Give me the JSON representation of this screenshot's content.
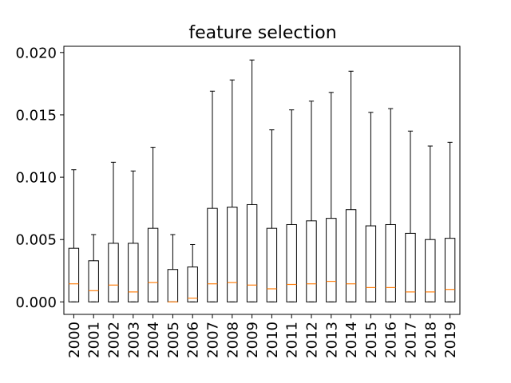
{
  "chart_data": {
    "type": "box",
    "title": "feature selection",
    "xlabel": "",
    "ylabel": "",
    "ylim": [
      -0.001,
      0.0205
    ],
    "yticks": [
      "0.000",
      "0.005",
      "0.010",
      "0.015",
      "0.020"
    ],
    "ytick_values": [
      0,
      0.005,
      0.01,
      0.015,
      0.02
    ],
    "grid": false,
    "colors": {
      "box": "#000000",
      "median": "#ff7f0e",
      "axes": "#000000"
    },
    "categories": [
      "2000",
      "2001",
      "2002",
      "2003",
      "2004",
      "2005",
      "2006",
      "2007",
      "2008",
      "2009",
      "2010",
      "2011",
      "2012",
      "2013",
      "2014",
      "2015",
      "2016",
      "2017",
      "2018",
      "2019"
    ],
    "boxes": [
      {
        "min": 0,
        "q1": 0,
        "median": 0.00145,
        "q3": 0.0043,
        "max": 0.0106
      },
      {
        "min": 0,
        "q1": 0,
        "median": 0.0009,
        "q3": 0.0033,
        "max": 0.0054
      },
      {
        "min": 0,
        "q1": 0,
        "median": 0.00135,
        "q3": 0.0047,
        "max": 0.0112
      },
      {
        "min": 0,
        "q1": 0,
        "median": 0.0008,
        "q3": 0.0047,
        "max": 0.0105
      },
      {
        "min": 0,
        "q1": 0,
        "median": 0.00155,
        "q3": 0.0059,
        "max": 0.0124
      },
      {
        "min": 0,
        "q1": 0,
        "median": 0.0,
        "q3": 0.0026,
        "max": 0.0054
      },
      {
        "min": 0,
        "q1": 0,
        "median": 0.0003,
        "q3": 0.0028,
        "max": 0.0046
      },
      {
        "min": 0,
        "q1": 0,
        "median": 0.00145,
        "q3": 0.0075,
        "max": 0.0169
      },
      {
        "min": 0,
        "q1": 0,
        "median": 0.00155,
        "q3": 0.0076,
        "max": 0.0178
      },
      {
        "min": 0,
        "q1": 0,
        "median": 0.00135,
        "q3": 0.0078,
        "max": 0.0194
      },
      {
        "min": 0,
        "q1": 0,
        "median": 0.00105,
        "q3": 0.0059,
        "max": 0.0138
      },
      {
        "min": 0,
        "q1": 0,
        "median": 0.0014,
        "q3": 0.0062,
        "max": 0.0154
      },
      {
        "min": 0,
        "q1": 0,
        "median": 0.00145,
        "q3": 0.0065,
        "max": 0.0161
      },
      {
        "min": 0,
        "q1": 0,
        "median": 0.00165,
        "q3": 0.0067,
        "max": 0.0168
      },
      {
        "min": 0,
        "q1": 0,
        "median": 0.00145,
        "q3": 0.0074,
        "max": 0.0185
      },
      {
        "min": 0,
        "q1": 0,
        "median": 0.00115,
        "q3": 0.0061,
        "max": 0.0152
      },
      {
        "min": 0,
        "q1": 0,
        "median": 0.00115,
        "q3": 0.0062,
        "max": 0.0155
      },
      {
        "min": 0,
        "q1": 0,
        "median": 0.0008,
        "q3": 0.0055,
        "max": 0.0137
      },
      {
        "min": 0,
        "q1": 0,
        "median": 0.0008,
        "q3": 0.005,
        "max": 0.0125
      },
      {
        "min": 0,
        "q1": 0,
        "median": 0.001,
        "q3": 0.0051,
        "max": 0.0128
      }
    ]
  }
}
